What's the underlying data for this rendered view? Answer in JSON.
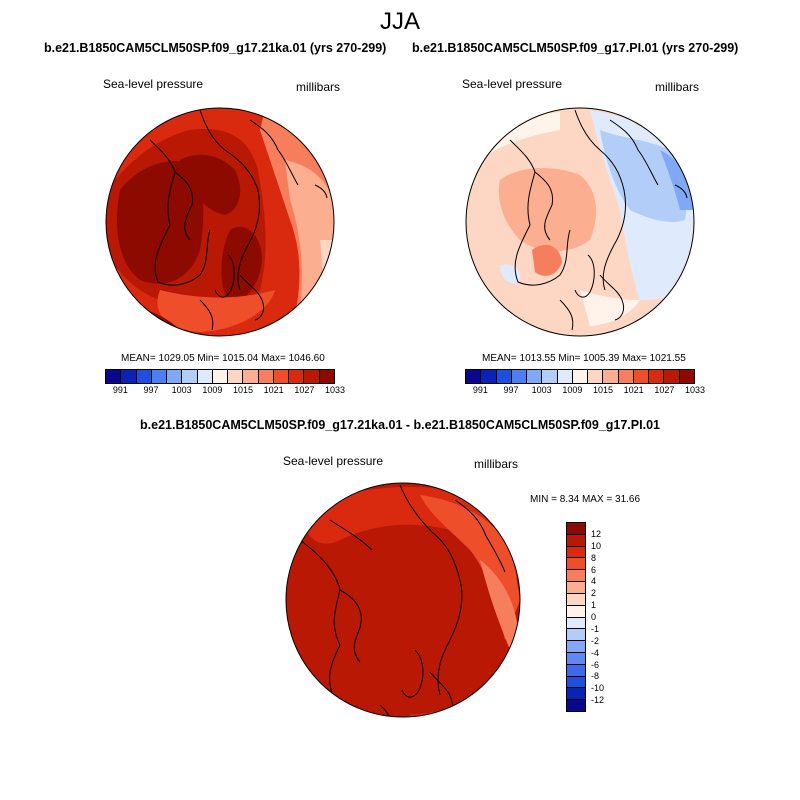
{
  "season": "JJA",
  "panel_left": {
    "title": "b.e21.B1850CAM5CLM50SP.f09_g17.21ka.01 (yrs 270-299)",
    "variable": "Sea-level pressure",
    "units": "millibars",
    "stats": "MEAN= 1029.05  Min= 1015.04  Max= 1046.60"
  },
  "panel_right": {
    "title": "b.e21.B1850CAM5CLM50SP.f09_g17.PI.01 (yrs 270-299)",
    "variable": "Sea-level pressure",
    "units": "millibars",
    "stats": "MEAN= 1013.55  Min= 1005.39  Max= 1021.55"
  },
  "panel_diff": {
    "title": "b.e21.B1850CAM5CLM50SP.f09_g17.21ka.01 - b.e21.B1850CAM5CLM50SP.f09_g17.PI.01",
    "variable": "Sea-level pressure",
    "units": "millibars",
    "stats": "MIN =   8.34 MAX =  31.66"
  },
  "abs_colorbar": {
    "colors": [
      "#08088c",
      "#0a23b4",
      "#1f4fe0",
      "#4d7ff0",
      "#80a8f5",
      "#b3cdf9",
      "#dfebfc",
      "#fff3ea",
      "#fed6c4",
      "#fcae90",
      "#f77e5c",
      "#ee4f2a",
      "#d92a10",
      "#b81804",
      "#8c0a00"
    ],
    "tick_labels": [
      "991",
      "997",
      "1003",
      "1009",
      "1015",
      "1021",
      "1027",
      "1033"
    ]
  },
  "diff_colorbar": {
    "colors": [
      "#8c0a00",
      "#b81804",
      "#d92a10",
      "#ee4f2a",
      "#f77e5c",
      "#fcae90",
      "#fed6c4",
      "#fff3ea",
      "#dfebfc",
      "#b3cdf9",
      "#80a8f5",
      "#5c8af2",
      "#3c6ae8",
      "#1f4fe0",
      "#0a23b4",
      "#08088c"
    ],
    "tick_labels": [
      "12",
      "10",
      "8",
      "6",
      "4",
      "2",
      "1",
      "0",
      "-1",
      "-2",
      "-4",
      "-6",
      "-8",
      "-10",
      "-12"
    ]
  }
}
